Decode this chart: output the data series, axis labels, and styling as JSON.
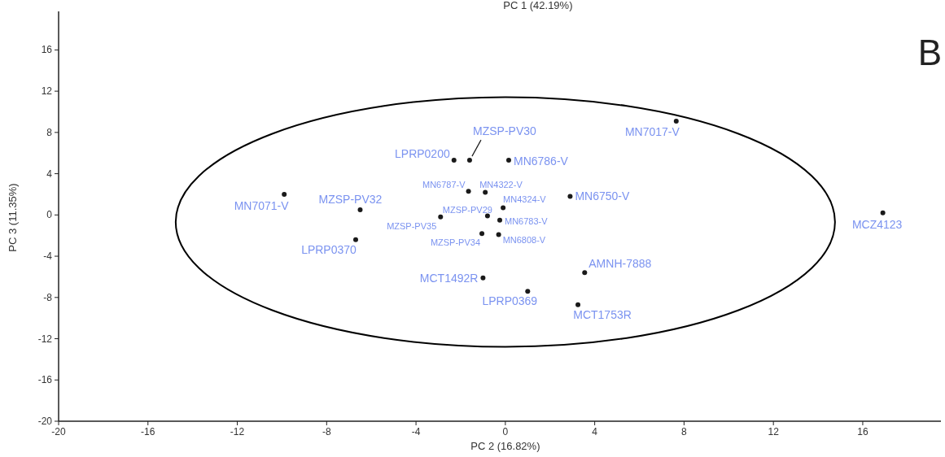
{
  "chart_data": {
    "type": "scatter",
    "xlabel": "PC 2 (16.82%)",
    "ylabel": "PC 3 (11.35%)",
    "annotations": [
      "PC 1 (42.19%)",
      "B"
    ],
    "xlim": [
      -20,
      19.5
    ],
    "ylim": [
      -20,
      19.5
    ],
    "xticks": [
      -20,
      -16,
      -12,
      -8,
      -4,
      0,
      4,
      8,
      12,
      16
    ],
    "yticks": [
      -20,
      -16,
      -12,
      -8,
      -4,
      0,
      4,
      8,
      12,
      16
    ],
    "series": [
      {
        "type": "scatter",
        "color": "#1a1a1a",
        "marker": "circle",
        "x": [
          -9.9,
          -6.5,
          -6.7,
          -2.3,
          -1.6,
          0.15,
          -1.65,
          -0.9,
          -0.1,
          -0.8,
          -2.9,
          -0.25,
          -1.05,
          -0.3,
          2.9,
          7.65,
          16.9,
          3.55,
          -1.0,
          1.0,
          3.25
        ],
        "values": [
          2.0,
          0.5,
          -2.4,
          5.3,
          5.3,
          5.3,
          2.3,
          2.2,
          0.7,
          -0.1,
          -0.2,
          -0.5,
          -1.8,
          -1.9,
          1.8,
          9.1,
          0.2,
          -5.6,
          -6.1,
          -7.4,
          -8.7
        ],
        "value_labels": [
          "MN7071-V",
          "MZSP-PV32",
          "LPRP0370",
          "LPRP0200",
          "MZSP-PV30",
          "MN6786-V",
          "MN6787-V",
          "MN4322-V",
          "MN4324-V",
          "MZSP-PV29",
          "MZSP-PV35",
          "MN6783-V",
          "MZSP-PV34",
          "MN6808-V",
          "MN6750-V",
          "MN7017-V",
          "MCZ4123",
          "AMNH-7888",
          "MCT1492R",
          "LPRP0369",
          "MCT1753R"
        ]
      }
    ]
  }
}
